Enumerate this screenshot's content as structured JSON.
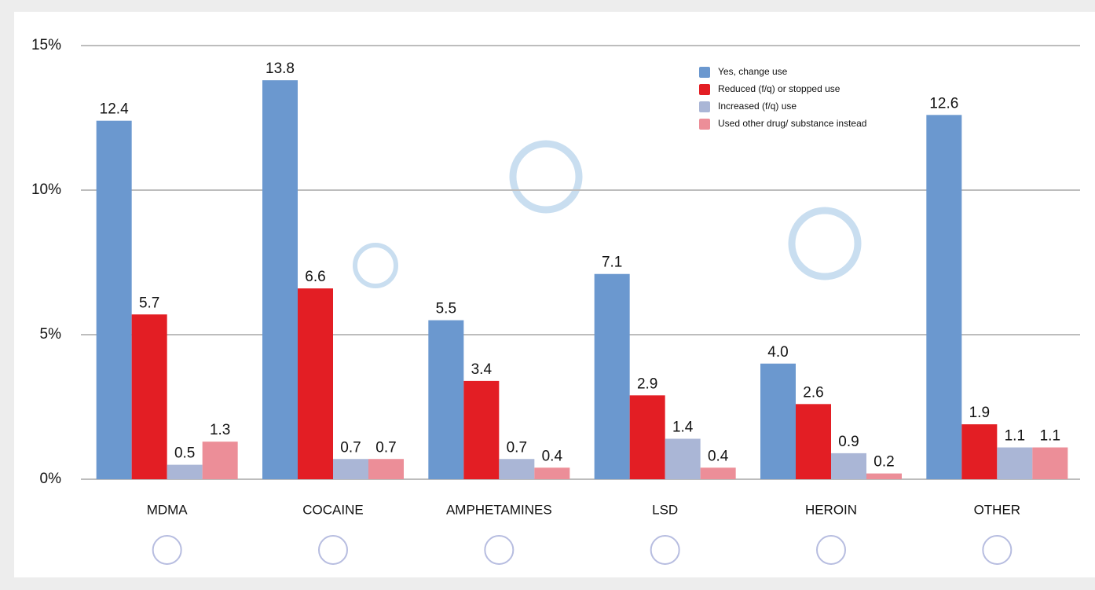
{
  "chart_data": {
    "type": "bar",
    "categories": [
      "MDMA",
      "COCAINE",
      "AMPHETAMINES",
      "LSD",
      "HEROIN",
      "OTHER"
    ],
    "series": [
      {
        "name": "Yes, change use",
        "color": "#6b98cf",
        "values": [
          12.4,
          13.8,
          5.5,
          7.1,
          4.0,
          12.6
        ],
        "value_labels": [
          "12.4",
          "13.8",
          "5.5",
          "7.1",
          "4.0",
          "12.6"
        ]
      },
      {
        "name": "Reduced (f/q) or stopped use",
        "color": "#e31e24",
        "values": [
          5.7,
          6.6,
          3.4,
          2.9,
          2.6,
          1.9
        ]
      },
      {
        "name": "Increased (f/q) use",
        "color": "#aab6d6",
        "values": [
          0.5,
          0.7,
          0.7,
          1.4,
          0.9,
          1.1
        ]
      },
      {
        "name": "Used other drug/ substance instead",
        "color": "#ec8e98",
        "values": [
          1.3,
          0.7,
          0.4,
          0.4,
          0.2,
          1.1
        ]
      }
    ],
    "ylim": [
      0,
      15
    ],
    "yticks": [
      {
        "value": 0,
        "label": "0%"
      },
      {
        "value": 5,
        "label": "5%"
      },
      {
        "value": 10,
        "label": "10%"
      },
      {
        "value": 15,
        "label": "15%"
      }
    ],
    "grid": true
  }
}
